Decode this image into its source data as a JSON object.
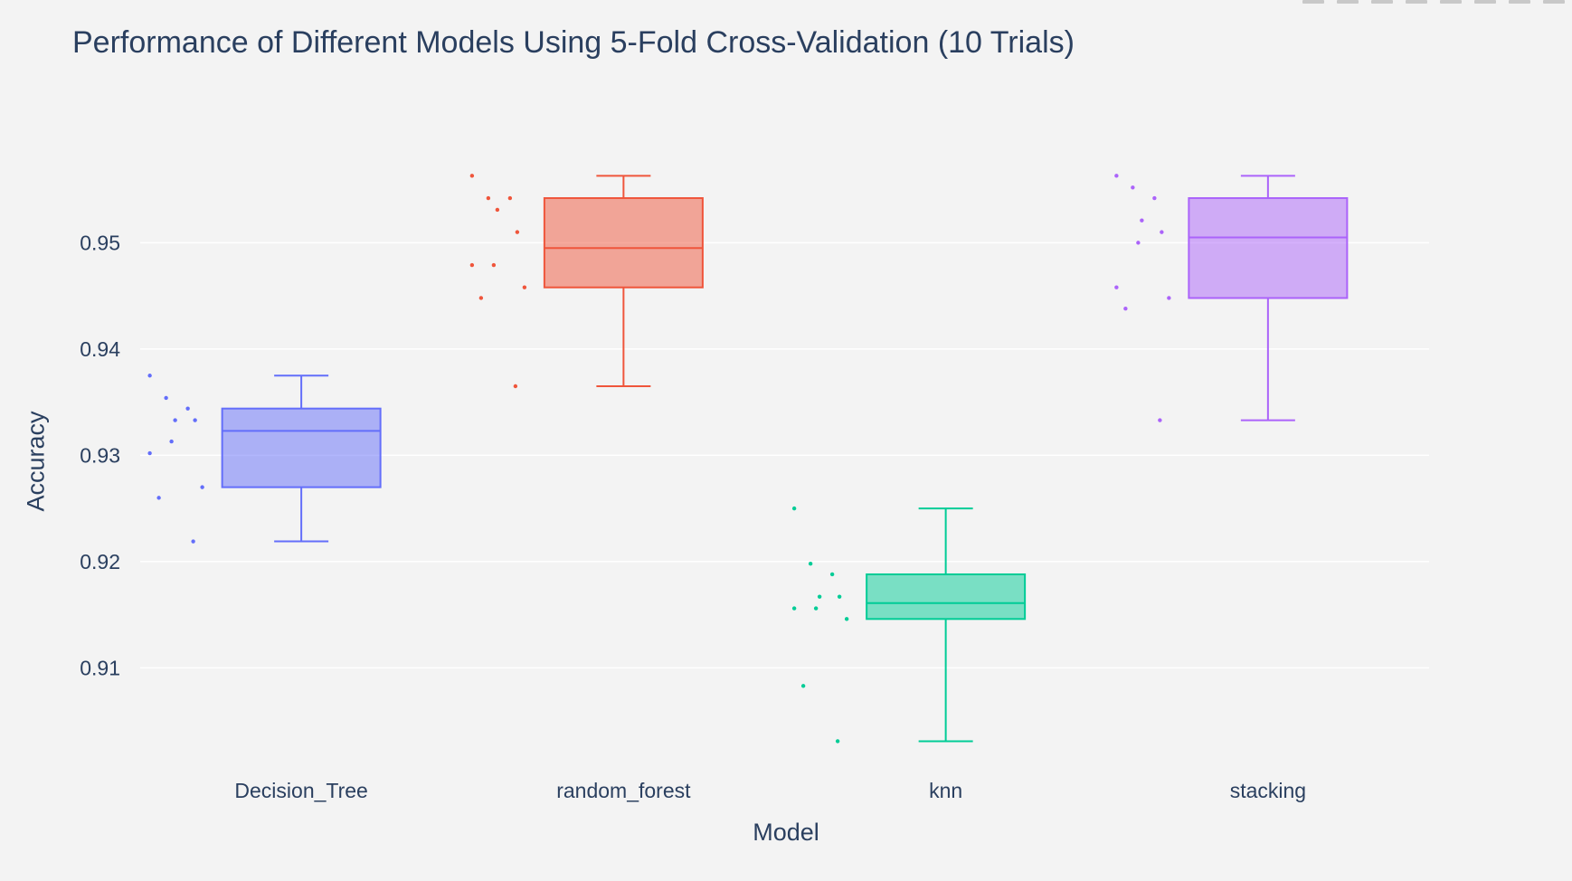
{
  "title": "Performance of Different Models Using 5-Fold Cross-Validation (10 Trials)",
  "chart_data": {
    "type": "box",
    "title": "Performance of Different Models Using 5-Fold Cross-Validation (10 Trials)",
    "xlabel": "Model",
    "ylabel": "Accuracy",
    "ylim": [
      0.9005,
      0.9605
    ],
    "yticks": [
      0.91,
      0.92,
      0.93,
      0.94,
      0.95
    ],
    "ytick_labels": [
      "0.91",
      "0.92",
      "0.93",
      "0.94",
      "0.95"
    ],
    "grid": true,
    "legend": "none",
    "categories": [
      "Decision_Tree",
      "random_forest",
      "knn",
      "stacking"
    ],
    "series": [
      {
        "category": "Decision_Tree",
        "color": "#636efa",
        "min": 0.9219,
        "q1": 0.927,
        "median": 0.9323,
        "q3": 0.9344,
        "max": 0.9375,
        "points": [
          0.9375,
          0.9354,
          0.9344,
          0.9333,
          0.9333,
          0.9313,
          0.9302,
          0.927,
          0.926,
          0.9219
        ]
      },
      {
        "category": "random_forest",
        "color": "#ef553b",
        "min": 0.9365,
        "q1": 0.9458,
        "median": 0.9495,
        "q3": 0.9542,
        "max": 0.9563,
        "points": [
          0.9563,
          0.9542,
          0.9542,
          0.9531,
          0.951,
          0.9479,
          0.9479,
          0.9458,
          0.9448,
          0.9365
        ]
      },
      {
        "category": "knn",
        "color": "#00cc96",
        "min": 0.9031,
        "q1": 0.9146,
        "median": 0.9161,
        "q3": 0.9188,
        "max": 0.925,
        "points": [
          0.925,
          0.9198,
          0.9188,
          0.9167,
          0.9167,
          0.9156,
          0.9156,
          0.9146,
          0.9083,
          0.9031
        ]
      },
      {
        "category": "stacking",
        "color": "#ab63fa",
        "min": 0.9333,
        "q1": 0.9448,
        "median": 0.9505,
        "q3": 0.9542,
        "max": 0.9563,
        "points": [
          0.9563,
          0.9552,
          0.9542,
          0.9521,
          0.951,
          0.95,
          0.9458,
          0.9448,
          0.9438,
          0.9333
        ]
      }
    ]
  }
}
